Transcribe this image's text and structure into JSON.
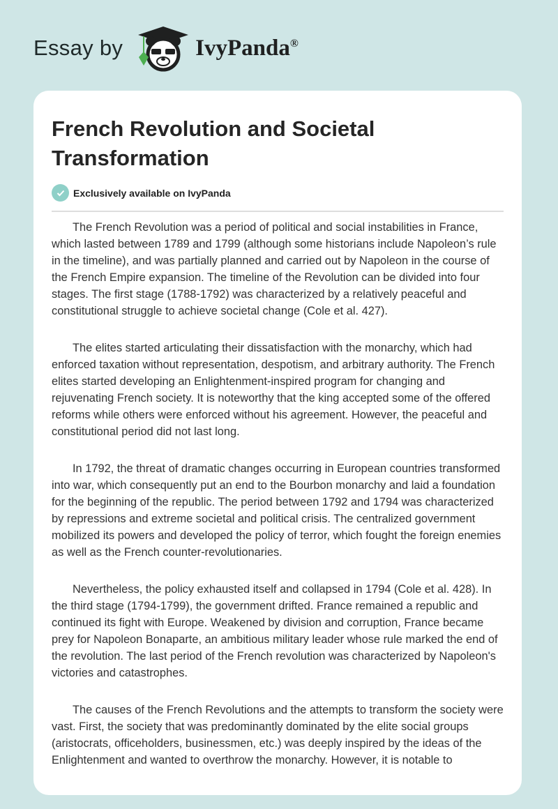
{
  "header": {
    "essay_by": "Essay by",
    "brand": "IvyPanda",
    "registered": "®",
    "logo_icon": "panda-graduate-icon"
  },
  "article": {
    "title": "French Revolution and Societal Transformation",
    "badge": "Exclusively available on IvyPanda",
    "paragraphs": [
      "The French Revolution was a period of political and social instabilities in France, which lasted between 1789 and 1799 (although some historians include Napoleon’s rule in the timeline), and was partially planned and carried out by Napoleon in the course of the French Empire expansion. The timeline of the Revolution can be divided into four stages. The first stage (1788-1792) was characterized by a relatively peaceful and constitutional struggle to achieve societal change (Cole et al. 427).",
      "The elites started articulating their dissatisfaction with the monarchy, which had enforced taxation without representation, despotism, and arbitrary authority. The French elites started developing an Enlightenment-inspired program for changing and rejuvenating French society. It is noteworthy that the king accepted some of the offered reforms while others were enforced without his agreement. However, the peaceful and constitutional period did not last long.",
      "In 1792, the threat of dramatic changes occurring in European countries transformed into war, which consequently put an end to the Bourbon monarchy and laid a foundation for the beginning of the republic. The period between 1792 and 1794 was characterized by repressions and extreme societal and political crisis. The centralized government mobilized its powers and developed the policy of terror, which fought the foreign enemies as well as the French counter-revolutionaries.",
      "Nevertheless, the policy exhausted itself and collapsed in 1794 (Cole et al. 428). In the third stage (1794-1799), the government drifted. France remained a republic and continued its fight with Europe. Weakened by division and corruption, France became prey for Napoleon Bonaparte, an ambitious military leader whose rule marked the end of the revolution. The last period of the French revolution was characterized by Napoleon's victories and catastrophes.",
      "The causes of the French Revolutions and the attempts to transform the society were vast. First, the society that was predominantly dominated by the elite social groups (aristocrats, officeholders, businessmen, etc.) was deeply inspired by the ideas of the Enlightenment and wanted to overthrow the monarchy. However, it is notable to"
    ]
  },
  "colors": {
    "background": "#cfe6e6",
    "accent": "#8fd0c8",
    "ivy_green": "#4caf50"
  }
}
